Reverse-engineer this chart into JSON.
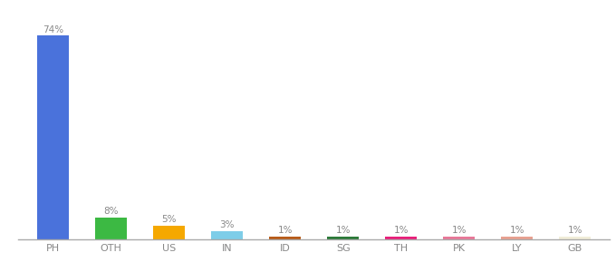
{
  "categories": [
    "PH",
    "OTH",
    "US",
    "IN",
    "ID",
    "SG",
    "TH",
    "PK",
    "LY",
    "GB"
  ],
  "values": [
    74,
    8,
    5,
    3,
    1,
    1,
    1,
    1,
    1,
    1
  ],
  "bar_colors": [
    "#4a72db",
    "#3cb943",
    "#f5a800",
    "#7ecde8",
    "#b85c1a",
    "#2d7a3a",
    "#e8207a",
    "#e87898",
    "#e8a090",
    "#f0ecd8"
  ],
  "labels": [
    "74%",
    "8%",
    "5%",
    "3%",
    "1%",
    "1%",
    "1%",
    "1%",
    "1%",
    "1%"
  ],
  "ylim": [
    0,
    82
  ],
  "background_color": "#ffffff",
  "label_fontsize": 7.5,
  "tick_fontsize": 8,
  "label_color": "#888888",
  "tick_color": "#888888",
  "bar_width": 0.55
}
